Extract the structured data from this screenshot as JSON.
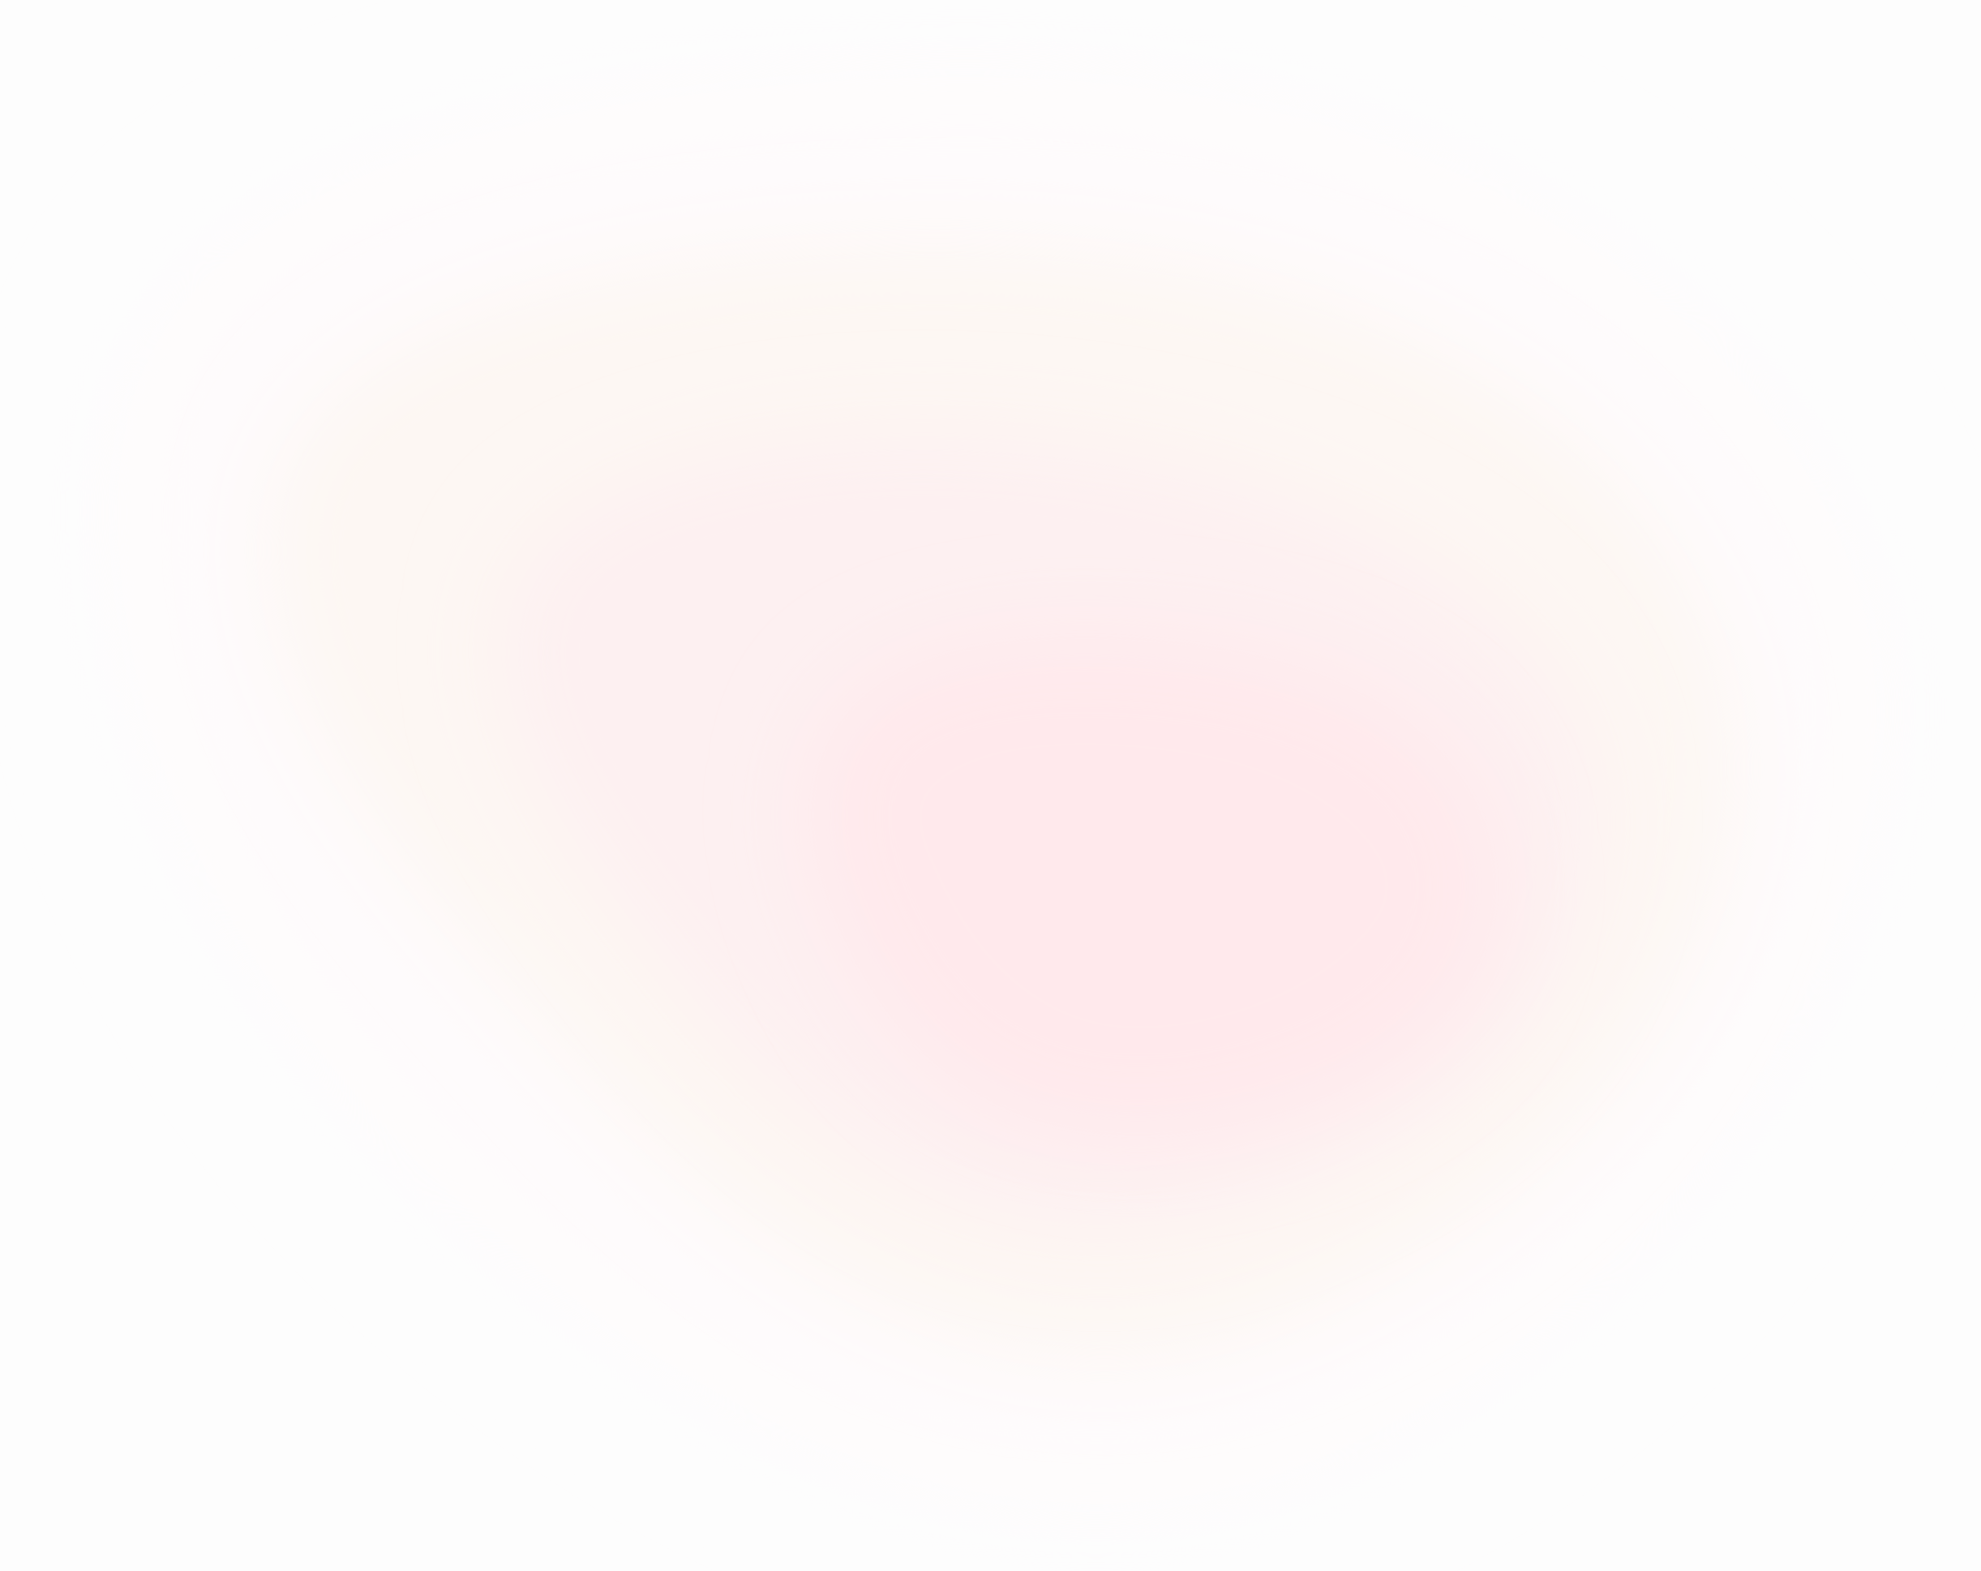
{
  "background": {
    "base_color": "#fdfdfd",
    "gradient_colors": {
      "core": "#ffe9ec",
      "mid": "#fdf0f1",
      "warm_tint": "#fdf7f3",
      "outer": "#fefbfc"
    },
    "shape": "soft-pink-gradient-blob"
  }
}
